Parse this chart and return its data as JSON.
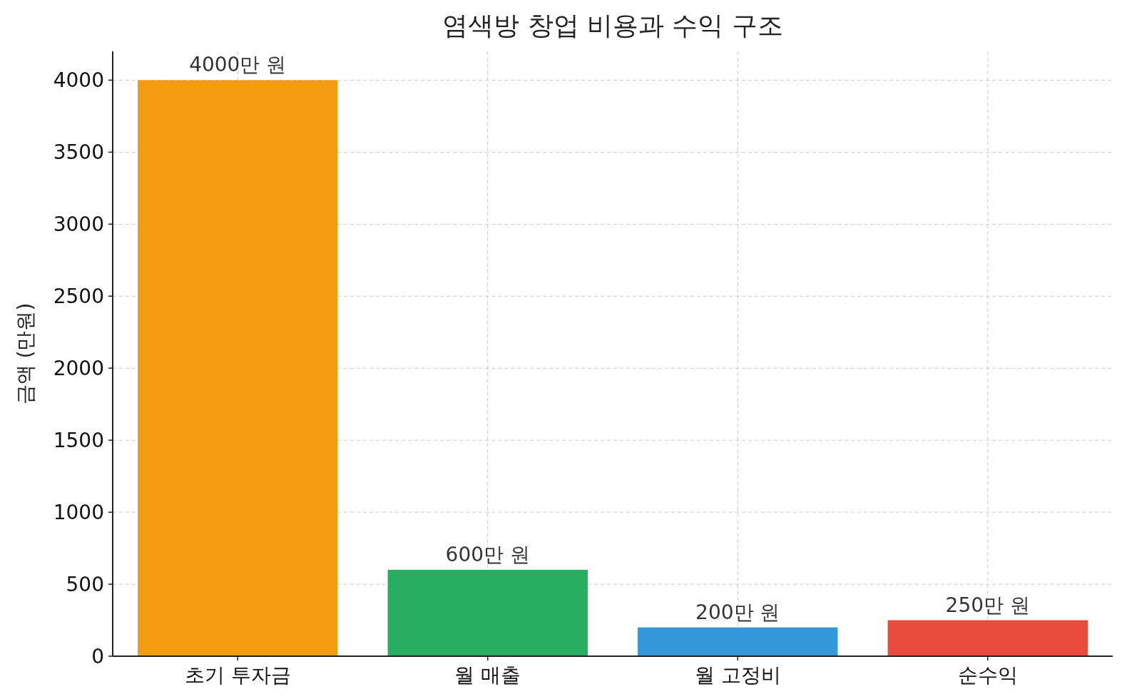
{
  "chart_data": {
    "type": "bar",
    "title": "염색방 창업 비용과 수익 구조",
    "ylabel": "금액 (만원)",
    "categories": [
      "초기 투자금",
      "월 매출",
      "월 고정비",
      "순수익"
    ],
    "values": [
      4000,
      600,
      200,
      250
    ],
    "colors": [
      "#f39c12",
      "#27ae60",
      "#3498db",
      "#e74c3c"
    ],
    "value_labels": [
      "4000만 원",
      "600만 원",
      "200만 원",
      "250만 원"
    ],
    "ylim": [
      0,
      4200
    ],
    "yticks": [
      0,
      500,
      1000,
      1500,
      2000,
      2500,
      3000,
      3500,
      4000
    ],
    "grid": true
  }
}
